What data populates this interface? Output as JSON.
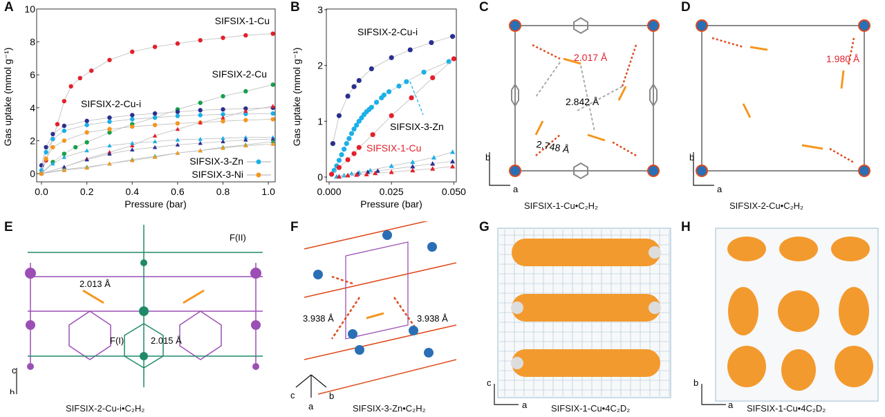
{
  "panels": {
    "A": "A",
    "B": "B",
    "C": "C",
    "D": "D",
    "E": "E",
    "F": "F",
    "G": "G",
    "H": "H"
  },
  "chart_data": [
    {
      "type": "scatter",
      "panel": "A",
      "xlabel": "Pressure (bar)",
      "ylabel": "Gas uptake (mmol g⁻¹)",
      "xlim": [
        0,
        1.03
      ],
      "ylim": [
        0,
        10
      ],
      "xticks": [
        "0.0",
        "0.2",
        "0.4",
        "0.6",
        "0.8",
        "1.0"
      ],
      "yticks": [
        "0",
        "2",
        "4",
        "6",
        "8",
        "10"
      ],
      "grid": false,
      "series": [
        {
          "name": "SIFSIX-1-Cu",
          "marker": "circle",
          "color": "#e3202b",
          "points": [
            [
              0,
              0
            ],
            [
              0.02,
              0.8
            ],
            [
              0.05,
              2.1
            ],
            [
              0.07,
              3.0
            ],
            [
              0.1,
              4.4
            ],
            [
              0.13,
              5.3
            ],
            [
              0.17,
              5.8
            ],
            [
              0.22,
              6.25
            ],
            [
              0.3,
              6.9
            ],
            [
              0.4,
              7.4
            ],
            [
              0.5,
              7.7
            ],
            [
              0.6,
              7.9
            ],
            [
              0.7,
              8.1
            ],
            [
              0.8,
              8.25
            ],
            [
              0.9,
              8.4
            ],
            [
              1.02,
              8.5
            ]
          ]
        },
        {
          "name": "SIFSIX-2-Cu",
          "marker": "circle",
          "color": "#16a04a",
          "points": [
            [
              0,
              0
            ],
            [
              0.05,
              0.7
            ],
            [
              0.1,
              1.2
            ],
            [
              0.15,
              1.6
            ],
            [
              0.2,
              1.9
            ],
            [
              0.3,
              2.5
            ],
            [
              0.4,
              3.0
            ],
            [
              0.5,
              3.4
            ],
            [
              0.6,
              3.9
            ],
            [
              0.7,
              4.3
            ],
            [
              0.8,
              4.7
            ],
            [
              0.9,
              5.0
            ],
            [
              1.02,
              5.4
            ]
          ]
        },
        {
          "name": "SIFSIX-2-Cu-i",
          "marker": "circle",
          "color": "#2a2f8f",
          "points": [
            [
              0,
              0.5
            ],
            [
              0.02,
              1.6
            ],
            [
              0.05,
              2.4
            ],
            [
              0.1,
              2.9
            ],
            [
              0.2,
              3.2
            ],
            [
              0.3,
              3.4
            ],
            [
              0.4,
              3.55
            ],
            [
              0.5,
              3.65
            ],
            [
              0.6,
              3.75
            ],
            [
              0.7,
              3.85
            ],
            [
              0.8,
              3.9
            ],
            [
              0.9,
              3.95
            ],
            [
              1.02,
              4.0
            ]
          ]
        },
        {
          "name": "SIFSIX-3-Zn",
          "marker": "circle",
          "color": "#1ab0e8",
          "points": [
            [
              0,
              0.2
            ],
            [
              0.02,
              1.3
            ],
            [
              0.05,
              2.1
            ],
            [
              0.1,
              2.6
            ],
            [
              0.2,
              2.95
            ],
            [
              0.3,
              3.15
            ],
            [
              0.4,
              3.3
            ],
            [
              0.5,
              3.4
            ],
            [
              0.6,
              3.5
            ],
            [
              0.7,
              3.55
            ],
            [
              0.8,
              3.6
            ],
            [
              0.9,
              3.62
            ],
            [
              1.02,
              3.65
            ]
          ]
        },
        {
          "name": "SIFSIX-3-Ni",
          "marker": "circle",
          "color": "#f5961e",
          "points": [
            [
              0,
              0
            ],
            [
              0.02,
              0.9
            ],
            [
              0.05,
              1.6
            ],
            [
              0.1,
              2.0
            ],
            [
              0.2,
              2.5
            ],
            [
              0.3,
              2.7
            ],
            [
              0.4,
              2.85
            ],
            [
              0.5,
              2.95
            ],
            [
              0.6,
              3.05
            ],
            [
              0.7,
              3.1
            ],
            [
              0.8,
              3.18
            ],
            [
              0.9,
              3.25
            ],
            [
              1.02,
              3.3
            ]
          ]
        },
        {
          "marker": "triangle",
          "color": "#e3202b",
          "points": [
            [
              0,
              0
            ],
            [
              0.1,
              0.4
            ],
            [
              0.2,
              0.9
            ],
            [
              0.3,
              1.3
            ],
            [
              0.4,
              1.7
            ],
            [
              0.5,
              2.3
            ],
            [
              0.6,
              2.7
            ],
            [
              0.7,
              3.1
            ],
            [
              0.8,
              3.4
            ],
            [
              0.9,
              3.8
            ],
            [
              1.02,
              4.1
            ]
          ]
        },
        {
          "marker": "triangle",
          "color": "#1ab0e8",
          "points": [
            [
              0,
              0
            ],
            [
              0.05,
              0.6
            ],
            [
              0.1,
              1.0
            ],
            [
              0.2,
              1.4
            ],
            [
              0.3,
              1.7
            ],
            [
              0.4,
              1.85
            ],
            [
              0.5,
              1.95
            ],
            [
              0.6,
              2.05
            ],
            [
              0.7,
              2.1
            ],
            [
              0.8,
              2.15
            ],
            [
              0.9,
              2.2
            ],
            [
              1.02,
              2.2
            ]
          ]
        },
        {
          "marker": "triangle",
          "color": "#2a2f8f",
          "points": [
            [
              0,
              0
            ],
            [
              0.1,
              0.4
            ],
            [
              0.2,
              0.85
            ],
            [
              0.3,
              1.2
            ],
            [
              0.4,
              1.45
            ],
            [
              0.5,
              1.6
            ],
            [
              0.6,
              1.75
            ],
            [
              0.7,
              1.85
            ],
            [
              0.8,
              1.95
            ],
            [
              0.9,
              2.05
            ],
            [
              1.02,
              2.1
            ]
          ]
        },
        {
          "marker": "triangle",
          "color": "#16a04a",
          "points": [
            [
              0,
              0
            ],
            [
              0.1,
              0.25
            ],
            [
              0.2,
              0.4
            ],
            [
              0.3,
              0.6
            ],
            [
              0.4,
              0.85
            ],
            [
              0.5,
              1.05
            ],
            [
              0.6,
              1.25
            ],
            [
              0.7,
              1.4
            ],
            [
              0.8,
              1.6
            ],
            [
              0.9,
              1.75
            ],
            [
              1.02,
              1.95
            ]
          ]
        },
        {
          "marker": "triangle",
          "color": "#f5961e",
          "points": [
            [
              0,
              0
            ],
            [
              0.1,
              0.2
            ],
            [
              0.2,
              0.35
            ],
            [
              0.3,
              0.6
            ],
            [
              0.4,
              0.8
            ],
            [
              0.5,
              1.0
            ],
            [
              0.6,
              1.25
            ],
            [
              0.7,
              1.4
            ],
            [
              0.8,
              1.55
            ],
            [
              0.9,
              1.7
            ],
            [
              1.02,
              1.8
            ]
          ]
        }
      ],
      "annotations": [
        "SIFSIX-1-Cu",
        "SIFSIX-2-Cu",
        "SIFSIX-2-Cu-i"
      ],
      "legend": {
        "placement": "bottom-right",
        "entries": [
          "SIFSIX-3-Zn",
          "SIFSIX-3-Ni"
        ]
      }
    },
    {
      "type": "scatter",
      "panel": "B",
      "xlabel": "Pressure (bar)",
      "ylabel": "Gas uptake (mmol g⁻¹)",
      "xlim": [
        0,
        0.051
      ],
      "ylim": [
        0,
        3
      ],
      "xticks": [
        "0.000",
        "0.025",
        "0.050"
      ],
      "yticks": [
        "0",
        "1",
        "2",
        "3"
      ],
      "grid": false,
      "series": [
        {
          "name": "SIFSIX-2-Cu-i",
          "marker": "circle",
          "color": "#2a2f8f",
          "points": [
            [
              0.0015,
              0.6
            ],
            [
              0.004,
              1.1
            ],
            [
              0.0075,
              1.45
            ],
            [
              0.01,
              1.62
            ],
            [
              0.012,
              1.73
            ],
            [
              0.017,
              1.94
            ],
            [
              0.025,
              2.14
            ],
            [
              0.0325,
              2.28
            ],
            [
              0.041,
              2.41
            ],
            [
              0.0495,
              2.52
            ]
          ]
        },
        {
          "name": "SIFSIX-3-Zn",
          "marker": "circle",
          "color": "#1ab0e8",
          "points": [
            [
              0.001,
              0.05
            ],
            [
              0.002,
              0.12
            ],
            [
              0.003,
              0.2
            ],
            [
              0.004,
              0.3
            ],
            [
              0.005,
              0.4
            ],
            [
              0.006,
              0.5
            ],
            [
              0.007,
              0.6
            ],
            [
              0.008,
              0.69
            ],
            [
              0.009,
              0.78
            ],
            [
              0.01,
              0.86
            ],
            [
              0.011,
              0.93
            ],
            [
              0.012,
              1.0
            ],
            [
              0.013,
              1.06
            ],
            [
              0.014,
              1.12
            ],
            [
              0.015,
              1.17
            ],
            [
              0.016,
              1.21
            ],
            [
              0.017,
              1.25
            ],
            [
              0.019,
              1.34
            ],
            [
              0.021,
              1.42
            ],
            [
              0.022,
              1.47
            ],
            [
              0.024,
              1.53
            ],
            [
              0.028,
              1.63
            ],
            [
              0.031,
              1.71
            ],
            [
              0.038,
              1.88
            ],
            [
              0.048,
              2.07
            ]
          ]
        },
        {
          "name": "SIFSIX-1-Cu",
          "marker": "circle",
          "color": "#e3202b",
          "points": [
            [
              0.001,
              0.05
            ],
            [
              0.004,
              0.17
            ],
            [
              0.0075,
              0.31
            ],
            [
              0.01,
              0.42
            ],
            [
              0.012,
              0.53
            ],
            [
              0.0175,
              0.76
            ],
            [
              0.025,
              1.1
            ],
            [
              0.033,
              1.42
            ],
            [
              0.0415,
              1.78
            ],
            [
              0.05,
              2.12
            ]
          ]
        },
        {
          "marker": "triangle",
          "color": "#1ab0e8",
          "points": [
            [
              0.003,
              0.01
            ],
            [
              0.006,
              0.03
            ],
            [
              0.009,
              0.06
            ],
            [
              0.012,
              0.08
            ],
            [
              0.0165,
              0.12
            ],
            [
              0.025,
              0.2
            ],
            [
              0.0335,
              0.27
            ],
            [
              0.042,
              0.35
            ],
            [
              0.0495,
              0.45
            ]
          ]
        },
        {
          "marker": "triangle",
          "color": "#2a2f8f",
          "points": [
            [
              0.004,
              0.01
            ],
            [
              0.0075,
              0.03
            ],
            [
              0.0115,
              0.06
            ],
            [
              0.0155,
              0.09
            ],
            [
              0.0195,
              0.11
            ],
            [
              0.0335,
              0.19
            ],
            [
              0.0415,
              0.24
            ],
            [
              0.0495,
              0.28
            ]
          ]
        },
        {
          "marker": "triangle",
          "color": "#e3202b",
          "points": [
            [
              0.004,
              0.01
            ],
            [
              0.0075,
              0.03
            ],
            [
              0.011,
              0.04
            ],
            [
              0.015,
              0.05
            ],
            [
              0.0185,
              0.07
            ],
            [
              0.025,
              0.09
            ],
            [
              0.0335,
              0.12
            ],
            [
              0.0415,
              0.15
            ],
            [
              0.0495,
              0.19
            ]
          ]
        }
      ],
      "annotations": [
        "SIFSIX-2-Cu-i",
        "SIFSIX-3-Zn",
        "SIFSIX-1-Cu"
      ]
    }
  ],
  "structures": {
    "C": {
      "distances": [
        "2.017 Å",
        "2.842 Å",
        "2.748 Å"
      ],
      "axes": [
        "b",
        "a"
      ],
      "caption": "SIFSIX-1-Cu•C₂H₂"
    },
    "D": {
      "distances": [
        "1.980 Å"
      ],
      "axes": [
        "b",
        "a"
      ],
      "caption": "SIFSIX-2-Cu•C₂H₂"
    },
    "E": {
      "labels": [
        "F(II)",
        "2.013 Å",
        "F(I)",
        "2.015 Å"
      ],
      "axes": [
        "c",
        "b",
        "a"
      ],
      "caption": "SIFSIX-2-Cu-i•C₂H₂"
    },
    "F": {
      "distances": [
        "3.938 Å",
        "3.938 Å"
      ],
      "axes": [
        "c",
        "a",
        "b"
      ],
      "caption": "SIFSIX-3-Zn•C₂H₂"
    },
    "G": {
      "axes": [
        "c",
        "a"
      ],
      "caption": "SIFSIX-1-Cu•4C₂D₂"
    },
    "H": {
      "axes": [
        "b",
        "a"
      ],
      "caption": "SIFSIX-1-Cu•4C₂D₂"
    }
  },
  "colors": {
    "red": "#e3202b",
    "green": "#16a04a",
    "navy": "#2a2f8f",
    "cyan": "#1ab0e8",
    "orange": "#f5961e",
    "metal": "#2a6fb5",
    "fluorine": "#e0491b",
    "frame_purple": "#9b4fb5",
    "frame_teal": "#1f8a6a"
  }
}
